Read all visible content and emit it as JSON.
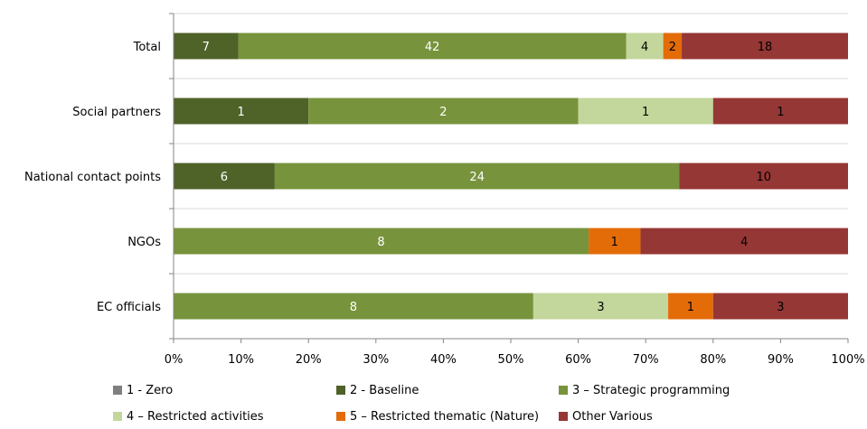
{
  "chart_data": {
    "type": "bar",
    "orientation": "horizontal",
    "stacked": "percent",
    "title": "",
    "xlabel": "",
    "ylabel": "",
    "xlim": [
      0,
      100
    ],
    "grid": "horizontal-category-gridlines",
    "legend_placement": "bottom",
    "categories": [
      "Total",
      "Social partners",
      "National contact points",
      "NGOs",
      "EC officials"
    ],
    "x_ticks": [
      "0%",
      "10%",
      "20%",
      "30%",
      "40%",
      "50%",
      "60%",
      "70%",
      "80%",
      "90%",
      "100%"
    ],
    "series": [
      {
        "name": "1 - Zero",
        "color": "#7f7f7f",
        "text_color": "#ffffff",
        "values": [
          0,
          0,
          0,
          0,
          0
        ]
      },
      {
        "name": "2 - Baseline",
        "color": "#4f6228",
        "text_color": "#ffffff",
        "values": [
          7,
          1,
          6,
          0,
          0
        ]
      },
      {
        "name": "3 – Strategic programming",
        "color": "#77933c",
        "text_color": "#ffffff",
        "values": [
          42,
          2,
          24,
          8,
          8
        ]
      },
      {
        "name": "4 – Restricted activities",
        "color": "#c3d69b",
        "text_color": "#000000",
        "values": [
          4,
          1,
          0,
          0,
          3
        ]
      },
      {
        "name": "5 – Restricted thematic (Nature)",
        "color": "#e36c09",
        "text_color": "#000000",
        "values": [
          2,
          0,
          0,
          1,
          1
        ]
      },
      {
        "name": "Other Various",
        "color": "#953735",
        "text_color": "#000000",
        "values": [
          18,
          1,
          10,
          4,
          3
        ]
      }
    ]
  }
}
